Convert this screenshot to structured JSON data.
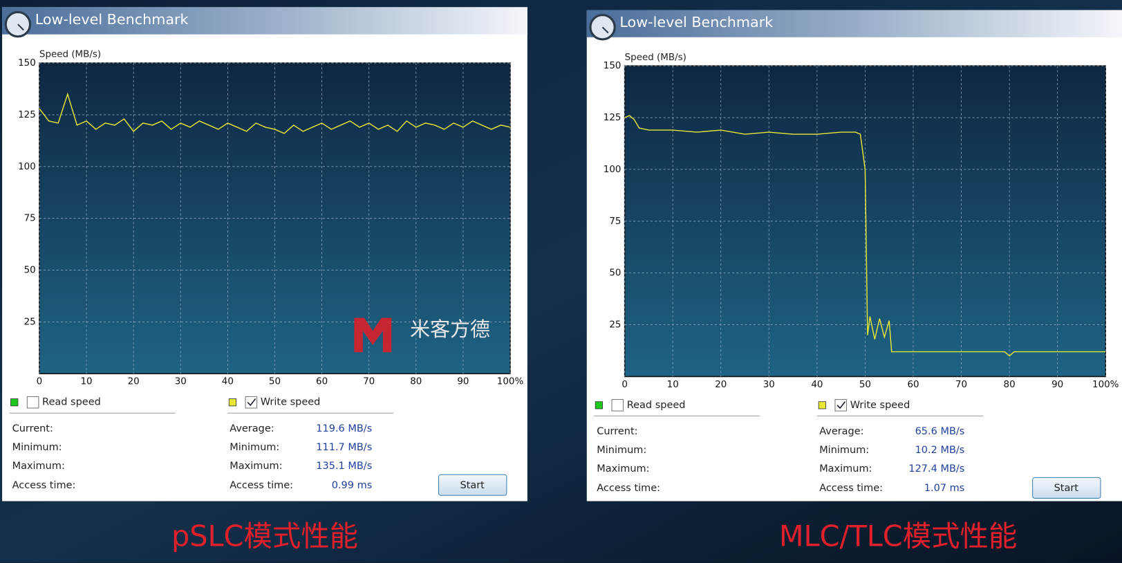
{
  "windows": [
    {
      "title": "Low-level Benchmark",
      "read_label": "Read speed",
      "read_color": "#1ec81e",
      "read_checked": false,
      "write_checked": true,
      "left_stats": [
        "Current:",
        "Minimum:",
        "Maximum:",
        "Access time:"
      ],
      "right_stats": [
        {
          "label": "Average:",
          "value": "119.6 MB/s"
        },
        {
          "label": "Minimum:",
          "value": "111.7 MB/s"
        },
        {
          "label": "Maximum:",
          "value": "135.1 MB/s"
        },
        {
          "label": "Access time:",
          "value": "0.99 ms"
        }
      ],
      "button": "Start",
      "watermark": "米客方德",
      "caption": "pSLC模式性能"
    },
    {
      "title": "Low-level Benchmark",
      "read_label": "Read speed",
      "read_color": "#1ec81e",
      "read_checked": false,
      "write_checked": true,
      "left_stats": [
        "Current:",
        "Minimum:",
        "Maximum:",
        "Access time:"
      ],
      "right_stats": [
        {
          "label": "Average:",
          "value": "65.6 MB/s"
        },
        {
          "label": "Minimum:",
          "value": "10.2 MB/s"
        },
        {
          "label": "Maximum:",
          "value": "127.4 MB/s"
        },
        {
          "label": "Access time:",
          "value": "1.07 ms"
        }
      ],
      "button": "Start",
      "caption": "MLC/TLC模式性能"
    }
  ],
  "chart_data": [
    {
      "type": "line",
      "y_label": "Speed (MB/s)",
      "x": [
        0,
        2,
        4,
        6,
        8,
        10,
        12,
        14,
        16,
        18,
        20,
        22,
        24,
        26,
        28,
        30,
        32,
        34,
        36,
        38,
        40,
        42,
        44,
        46,
        48,
        50,
        52,
        54,
        56,
        58,
        60,
        62,
        64,
        66,
        68,
        70,
        72,
        74,
        76,
        78,
        80,
        82,
        84,
        86,
        88,
        90,
        92,
        94,
        96,
        98,
        100
      ],
      "series": [
        {
          "name": "Write speed",
          "color": "#e8e832",
          "values": [
            128,
            122,
            121,
            135,
            120,
            122,
            118,
            121,
            120,
            123,
            117,
            121,
            120,
            122,
            118,
            121,
            119,
            122,
            120,
            118,
            121,
            119,
            117,
            121,
            119,
            118,
            116,
            120,
            117,
            119,
            121,
            118,
            120,
            122,
            119,
            121,
            118,
            120,
            117,
            122,
            119,
            121,
            120,
            118,
            121,
            119,
            122,
            120,
            118,
            120,
            119
          ]
        }
      ],
      "xlim": [
        0,
        100
      ],
      "xticks": [
        0,
        10,
        20,
        30,
        40,
        50,
        60,
        70,
        80,
        90,
        {
          "value": 100,
          "label": "100%"
        }
      ],
      "ylim": [
        0,
        150
      ],
      "yticks": [
        25,
        50,
        75,
        100,
        125,
        150
      ],
      "grid": true
    },
    {
      "type": "line",
      "y_label": "Speed (MB/s)",
      "x": [
        0,
        1,
        2,
        3,
        5,
        10,
        15,
        20,
        25,
        30,
        35,
        40,
        45,
        48,
        49,
        50,
        50.5,
        51,
        52,
        53,
        54,
        55,
        55.5,
        56,
        60,
        65,
        70,
        75,
        79,
        80,
        81,
        85,
        90,
        95,
        100
      ],
      "series": [
        {
          "name": "Write speed",
          "color": "#e8e832",
          "values": [
            125,
            126,
            124,
            120,
            119,
            119,
            118,
            119,
            117,
            118,
            117,
            117,
            118,
            118,
            117,
            100,
            20,
            29,
            18,
            28,
            19,
            27,
            12,
            12,
            12,
            12,
            12,
            12,
            12,
            10,
            12,
            12,
            12,
            12,
            12
          ]
        }
      ],
      "xlim": [
        0,
        100
      ],
      "xticks": [
        0,
        10,
        20,
        30,
        40,
        50,
        60,
        70,
        80,
        90,
        {
          "value": 100,
          "label": "100%"
        }
      ],
      "ylim": [
        0,
        150
      ],
      "yticks": [
        25,
        50,
        75,
        100,
        125,
        150
      ],
      "grid": true
    }
  ]
}
